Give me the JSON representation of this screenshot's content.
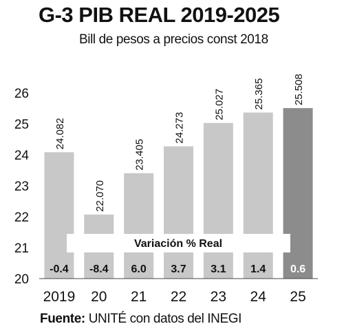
{
  "header": {
    "title": "G-3  PIB REAL 2019-2025",
    "subtitle": "Bill de pesos a precios const 2018"
  },
  "source": {
    "label": "Fuente:",
    "text": " UNITÉ con datos del INEGI"
  },
  "colors": {
    "bar": "#c8c8c8",
    "bar_highlight": "#8c8c8d",
    "band": "#ffffff"
  },
  "chart_data": {
    "type": "bar",
    "title": "G-3  PIB REAL 2019-2025",
    "subtitle": "Bill de pesos a precios const 2018",
    "categories": [
      "2019",
      "20",
      "21",
      "22",
      "23",
      "24",
      "25"
    ],
    "value_labels": [
      "24.082",
      "22.070",
      "23.405",
      "24.273",
      "25.027",
      "25.365",
      "25.508"
    ],
    "values": [
      24.082,
      22.07,
      23.405,
      24.273,
      25.027,
      25.365,
      25.508
    ],
    "ylim": [
      20,
      26
    ],
    "yticks": [
      "20",
      "21",
      "22",
      "23",
      "24",
      "25",
      "26"
    ],
    "grid": false,
    "highlight_index": 6,
    "variation": {
      "label": "Variación % Real",
      "values": [
        "-0.4",
        "-8.4",
        "6.0",
        "3.7",
        "3.1",
        "1.4",
        "0.6"
      ]
    }
  }
}
